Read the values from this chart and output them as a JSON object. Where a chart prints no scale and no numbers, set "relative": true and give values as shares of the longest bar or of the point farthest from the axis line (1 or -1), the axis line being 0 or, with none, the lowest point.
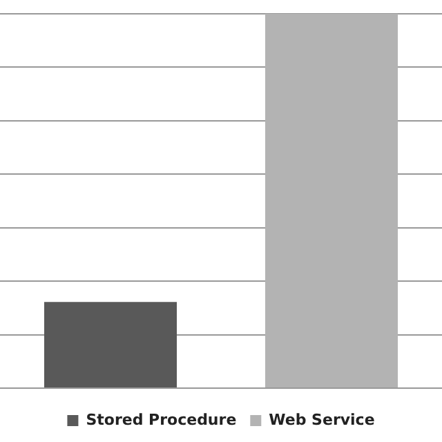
{
  "chart_data": {
    "type": "bar",
    "categories": [
      null,
      null
    ],
    "relative": true,
    "grid": "y",
    "stacked": true,
    "legend": "bottom",
    "series": [
      {
        "name": "Stored Procedure",
        "color": "#595959",
        "values": [
          0.23,
          null
        ]
      },
      {
        "name": "Web Service",
        "color": "#b3b3b3",
        "values": [
          null,
          1
        ]
      }
    ]
  }
}
